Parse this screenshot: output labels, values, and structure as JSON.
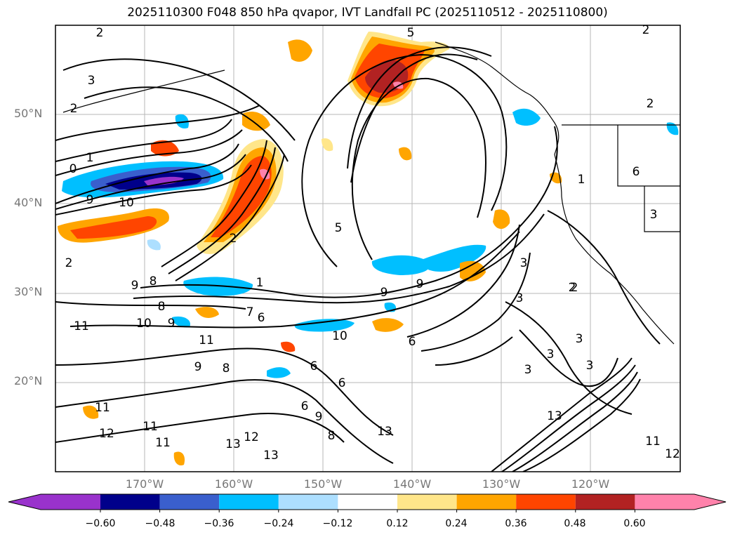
{
  "title": "2025110300 F048 850 hPa qvapor, IVT Landfall PC (2025110512 - 2025110800)",
  "axes": {
    "lat_labels": [
      "50°N",
      "40°N",
      "30°N",
      "20°N"
    ],
    "lon_labels": [
      "170°W",
      "160°W",
      "150°W",
      "140°W",
      "130°W",
      "120°W"
    ]
  },
  "colorbar": {
    "ticks": [
      "−0.60",
      "−0.48",
      "−0.36",
      "−0.24",
      "−0.12",
      "0.12",
      "0.24",
      "0.36",
      "0.48",
      "0.60"
    ],
    "colors": [
      "#9932CC",
      "#00008B",
      "#3A5FCD",
      "#00BFFF",
      "#ADDFFF",
      "#FFFFFF",
      "#FFE68A",
      "#FFA500",
      "#FF4500",
      "#B22222",
      "#FF82AB"
    ]
  },
  "contour_labels": [
    {
      "text": "2"
    },
    {
      "text": "3"
    },
    {
      "text": "2"
    },
    {
      "text": "1"
    },
    {
      "text": "0"
    },
    {
      "text": "9"
    },
    {
      "text": "10"
    },
    {
      "text": "5"
    },
    {
      "text": "2"
    },
    {
      "text": "9"
    },
    {
      "text": "8"
    },
    {
      "text": "1"
    },
    {
      "text": "8"
    },
    {
      "text": "7"
    },
    {
      "text": "6"
    },
    {
      "text": "11"
    },
    {
      "text": "10"
    },
    {
      "text": "9"
    },
    {
      "text": "11"
    },
    {
      "text": "10"
    },
    {
      "text": "9"
    },
    {
      "text": "8"
    },
    {
      "text": "6"
    },
    {
      "text": "6"
    },
    {
      "text": "6"
    },
    {
      "text": "9"
    },
    {
      "text": "8"
    },
    {
      "text": "13"
    },
    {
      "text": "12"
    },
    {
      "text": "13"
    },
    {
      "text": "11"
    },
    {
      "text": "11"
    },
    {
      "text": "12"
    },
    {
      "text": "11"
    },
    {
      "text": "13"
    },
    {
      "text": "9"
    },
    {
      "text": "9"
    },
    {
      "text": "5"
    },
    {
      "text": "2"
    },
    {
      "text": "2"
    },
    {
      "text": "2"
    },
    {
      "text": "6"
    },
    {
      "text": "1"
    },
    {
      "text": "3"
    },
    {
      "text": "3"
    },
    {
      "text": "3"
    },
    {
      "text": "2"
    },
    {
      "text": "3"
    },
    {
      "text": "3"
    },
    {
      "text": "3"
    },
    {
      "text": "13"
    },
    {
      "text": "11"
    },
    {
      "text": "12"
    },
    {
      "text": "6"
    },
    {
      "text": "2"
    },
    {
      "text": "3"
    }
  ]
}
